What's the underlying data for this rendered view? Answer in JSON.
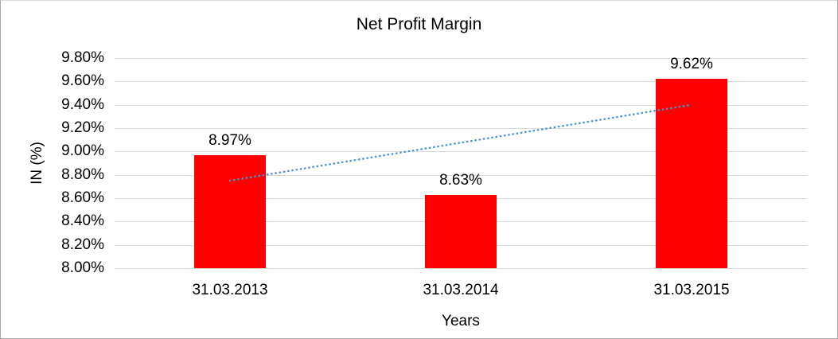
{
  "chart_data": {
    "type": "bar",
    "title": "Net Profit Margin",
    "categories": [
      "31.03.2013",
      "31.03.2014",
      "31.03.2015"
    ],
    "values": [
      8.97,
      8.63,
      9.62
    ],
    "data_labels": [
      "8.97%",
      "8.63%",
      "9.62%"
    ],
    "xlabel": "Years",
    "ylabel": "IN (%)",
    "ylim": [
      8.0,
      9.8
    ],
    "ytick_step": 0.2,
    "ytick_labels": [
      "8.00%",
      "8.20%",
      "8.40%",
      "8.60%",
      "8.80%",
      "9.00%",
      "9.20%",
      "9.40%",
      "9.60%",
      "9.80%"
    ],
    "grid": true,
    "legend": "none",
    "trendline": {
      "type": "linear",
      "style": "dotted",
      "start_value": 8.75,
      "end_value": 9.4
    },
    "colors": {
      "bar": "#FF0000",
      "gridline": "#D9D9D9",
      "trendline": "#4A90D9",
      "text": "#000000",
      "frame_border": "#A6A6A6"
    }
  }
}
